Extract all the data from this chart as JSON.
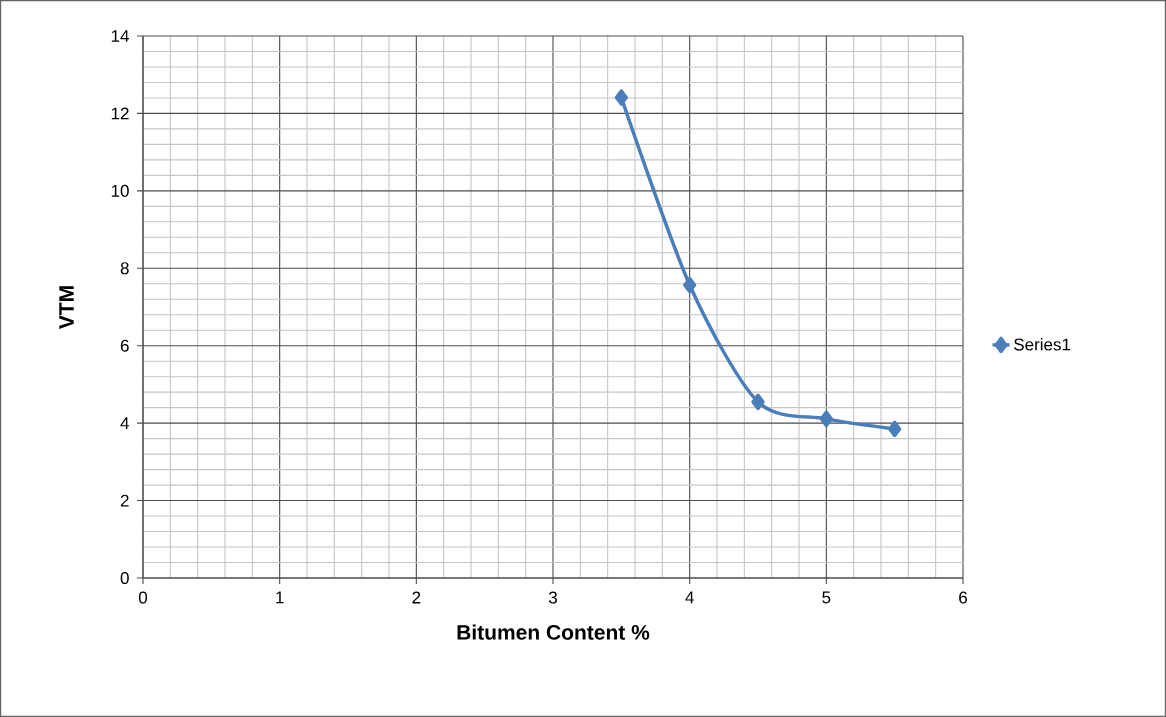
{
  "chart_data": {
    "type": "line",
    "xlabel": "Bitumen Content %",
    "ylabel": "VTM",
    "series": [
      {
        "name": "Series1",
        "color": "#4a7ebb",
        "x": [
          3.5,
          4,
          4.5,
          5,
          5.5
        ],
        "values": [
          12.41,
          7.57,
          4.55,
          4.11,
          3.85
        ]
      }
    ],
    "xlim": [
      0,
      6
    ],
    "xticks": [
      0,
      1,
      2,
      3,
      4,
      5,
      6
    ],
    "ylim": [
      0,
      14
    ],
    "yticks": [
      0,
      2,
      4,
      6,
      8,
      10,
      12,
      14
    ],
    "grid": true,
    "legend": "right",
    "marker": "diamond",
    "line_style": "solid"
  }
}
